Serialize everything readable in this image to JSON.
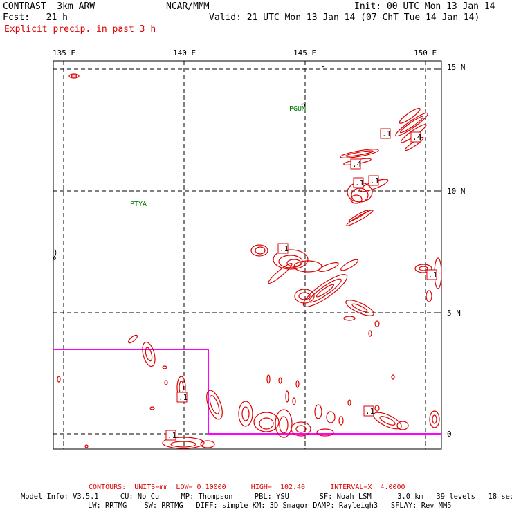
{
  "header": {
    "model": "CONTRAST  3km ARW",
    "org": "NCAR/MMM",
    "init": "Init: 00 UTC Mon 13 Jan 14",
    "fcst": "Fcst:   21 h",
    "valid": "Valid: 21 UTC Mon 13 Jan 14 (07 ChT Tue 14 Jan 14)",
    "field": "Explicit precip. in past 3 h"
  },
  "axes": {
    "lon_labels": [
      "135 E",
      "140 E",
      "145 E",
      "150 E"
    ],
    "lat_labels": [
      "15 N",
      "10 N",
      "5 N",
      "0"
    ]
  },
  "stations": [
    "PGUM",
    "PTYA"
  ],
  "contour_labels": [
    ".1",
    ".4",
    ".4",
    ".1",
    ".1",
    ".1",
    ".1",
    ".1",
    ".1",
    ".1"
  ],
  "footer": {
    "contours": "CONTOURS:  UNITS=mm  LOW= 0.10000      HIGH=  102.40      INTERVAL=X  4.0000",
    "model_info_1": "Model Info: V3.5.1     CU: No Cu     MP: Thompson     PBL: YSU       SF: Noah LSM      3.0 km   39 levels   18 sec",
    "model_info_2": "LW: RRTMG    SW: RRTMG   DIFF: simple KM: 3D Smagor DAMP: Rayleigh3   SFLAY: Rev MM5"
  },
  "colors": {
    "contour": "#dd0000",
    "domain_box": "#ff00ff",
    "station": "#007700"
  }
}
